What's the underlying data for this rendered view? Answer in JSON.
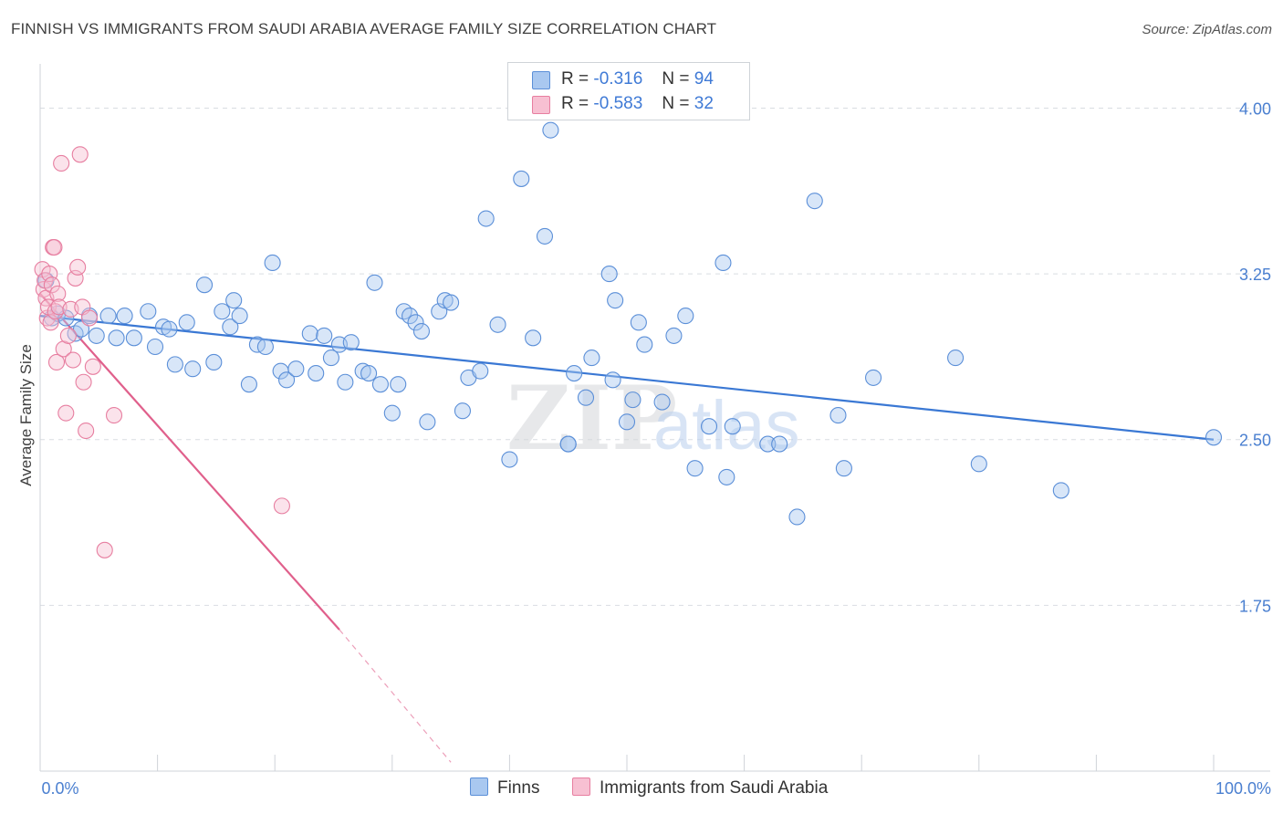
{
  "title": "FINNISH VS IMMIGRANTS FROM SAUDI ARABIA AVERAGE FAMILY SIZE CORRELATION CHART",
  "source": "Source: ZipAtlas.com",
  "watermark": {
    "zip": "ZIP",
    "atlas": "atlas"
  },
  "legend": {
    "finns": {
      "r_label": "R =",
      "r_value": "-0.316",
      "n_label": "N =",
      "n_value": "94",
      "color": "#a9c8f0",
      "stroke": "#5b8fd8"
    },
    "saudi": {
      "r_label": "R =",
      "r_value": "-0.583",
      "n_label": "N =",
      "n_value": "32",
      "color": "#f7c0d2",
      "stroke": "#e77ea0"
    }
  },
  "bottom_legend": {
    "finns": "Finns",
    "saudi": "Immigrants from Saudi Arabia"
  },
  "chart_data": {
    "type": "scatter",
    "title": "FINNISH VS IMMIGRANTS FROM SAUDI ARABIA AVERAGE FAMILY SIZE CORRELATION CHART",
    "xlabel": "",
    "ylabel": "Average Family Size",
    "xlim": [
      0,
      100
    ],
    "ylim": [
      1.0,
      4.2
    ],
    "x_tick_labels": [
      "0.0%",
      "100.0%"
    ],
    "y_ticks": [
      1.75,
      2.5,
      3.25,
      4.0
    ],
    "y_tick_labels": [
      "1.75",
      "2.50",
      "3.25",
      "4.00"
    ],
    "grid": true,
    "series": [
      {
        "name": "Finns",
        "color": "#5b8fd8",
        "fill": "#a9c8f0",
        "trend": {
          "x": [
            0,
            100
          ],
          "y": [
            3.06,
            2.5
          ],
          "color": "#3a78d4"
        },
        "points": [
          [
            0.5,
            3.22
          ],
          [
            1.0,
            3.05
          ],
          [
            1.5,
            3.07
          ],
          [
            2.2,
            3.05
          ],
          [
            3.0,
            2.98
          ],
          [
            3.5,
            3.0
          ],
          [
            4.2,
            3.06
          ],
          [
            4.8,
            2.97
          ],
          [
            5.8,
            3.06
          ],
          [
            6.5,
            2.96
          ],
          [
            7.2,
            3.06
          ],
          [
            8.0,
            2.96
          ],
          [
            9.2,
            3.08
          ],
          [
            9.8,
            2.92
          ],
          [
            10.5,
            3.01
          ],
          [
            11.0,
            3.0
          ],
          [
            11.5,
            2.84
          ],
          [
            12.5,
            3.03
          ],
          [
            13.0,
            2.82
          ],
          [
            14.0,
            3.2
          ],
          [
            14.8,
            2.85
          ],
          [
            15.5,
            3.08
          ],
          [
            16.2,
            3.01
          ],
          [
            16.5,
            3.13
          ],
          [
            17.0,
            3.06
          ],
          [
            17.8,
            2.75
          ],
          [
            18.5,
            2.93
          ],
          [
            19.2,
            2.92
          ],
          [
            19.8,
            3.3
          ],
          [
            20.5,
            2.81
          ],
          [
            21.0,
            2.77
          ],
          [
            21.8,
            2.82
          ],
          [
            23.0,
            2.98
          ],
          [
            23.5,
            2.8
          ],
          [
            24.2,
            2.97
          ],
          [
            24.8,
            2.87
          ],
          [
            25.5,
            2.93
          ],
          [
            26.0,
            2.76
          ],
          [
            26.5,
            2.94
          ],
          [
            27.5,
            2.81
          ],
          [
            28.0,
            2.8
          ],
          [
            28.5,
            3.21
          ],
          [
            29.0,
            2.75
          ],
          [
            30.0,
            2.62
          ],
          [
            30.5,
            2.75
          ],
          [
            31.0,
            3.08
          ],
          [
            31.5,
            3.06
          ],
          [
            32.0,
            3.03
          ],
          [
            32.5,
            2.99
          ],
          [
            33.0,
            2.58
          ],
          [
            34.0,
            3.08
          ],
          [
            34.5,
            3.13
          ],
          [
            35.0,
            3.12
          ],
          [
            36.0,
            2.63
          ],
          [
            36.5,
            2.78
          ],
          [
            37.5,
            2.81
          ],
          [
            38.0,
            3.5
          ],
          [
            39.0,
            3.02
          ],
          [
            40.0,
            2.41
          ],
          [
            41.0,
            3.68
          ],
          [
            42.0,
            2.96
          ],
          [
            43.0,
            3.42
          ],
          [
            43.5,
            3.9
          ],
          [
            45.0,
            2.48
          ],
          [
            45.5,
            2.8
          ],
          [
            46.5,
            2.69
          ],
          [
            47.0,
            2.87
          ],
          [
            48.5,
            3.25
          ],
          [
            49.0,
            3.13
          ],
          [
            48.8,
            2.77
          ],
          [
            50.0,
            2.58
          ],
          [
            50.5,
            2.68
          ],
          [
            51.0,
            3.03
          ],
          [
            51.5,
            2.93
          ],
          [
            53.0,
            2.67
          ],
          [
            54.0,
            2.97
          ],
          [
            55.0,
            3.06
          ],
          [
            55.8,
            2.37
          ],
          [
            57.0,
            2.56
          ],
          [
            58.2,
            3.3
          ],
          [
            58.5,
            2.33
          ],
          [
            62.0,
            2.48
          ],
          [
            64.5,
            2.15
          ],
          [
            66.0,
            3.58
          ],
          [
            68.0,
            2.61
          ],
          [
            68.5,
            2.37
          ],
          [
            71.0,
            2.78
          ],
          [
            78.0,
            2.87
          ],
          [
            80.0,
            2.39
          ],
          [
            87.0,
            2.27
          ],
          [
            100.0,
            2.51
          ],
          [
            45.0,
            2.48
          ],
          [
            59.0,
            2.56
          ],
          [
            63.0,
            2.48
          ]
        ]
      },
      {
        "name": "Immigrants from Saudi Arabia",
        "color": "#e77ea0",
        "fill": "#f7c0d2",
        "trend": {
          "x": [
            0,
            25.5
          ],
          "y": [
            3.16,
            1.64
          ],
          "dashed_to": [
            35.0,
            1.04
          ],
          "color": "#e0608c"
        },
        "points": [
          [
            0.2,
            3.27
          ],
          [
            0.3,
            3.18
          ],
          [
            0.4,
            3.22
          ],
          [
            0.5,
            3.14
          ],
          [
            0.6,
            3.05
          ],
          [
            0.7,
            3.1
          ],
          [
            0.8,
            3.25
          ],
          [
            0.9,
            3.03
          ],
          [
            1.0,
            3.2
          ],
          [
            1.1,
            3.37
          ],
          [
            1.2,
            3.37
          ],
          [
            1.3,
            3.08
          ],
          [
            1.4,
            2.85
          ],
          [
            1.5,
            3.16
          ],
          [
            1.6,
            3.1
          ],
          [
            1.8,
            3.75
          ],
          [
            2.0,
            2.91
          ],
          [
            2.2,
            2.62
          ],
          [
            2.4,
            2.97
          ],
          [
            2.6,
            3.09
          ],
          [
            2.8,
            2.86
          ],
          [
            3.0,
            3.23
          ],
          [
            3.2,
            3.28
          ],
          [
            3.4,
            3.79
          ],
          [
            3.6,
            3.1
          ],
          [
            3.7,
            2.76
          ],
          [
            3.9,
            2.54
          ],
          [
            4.2,
            3.05
          ],
          [
            4.5,
            2.83
          ],
          [
            5.5,
            2.0
          ],
          [
            6.3,
            2.61
          ],
          [
            20.6,
            2.2
          ]
        ]
      }
    ]
  }
}
